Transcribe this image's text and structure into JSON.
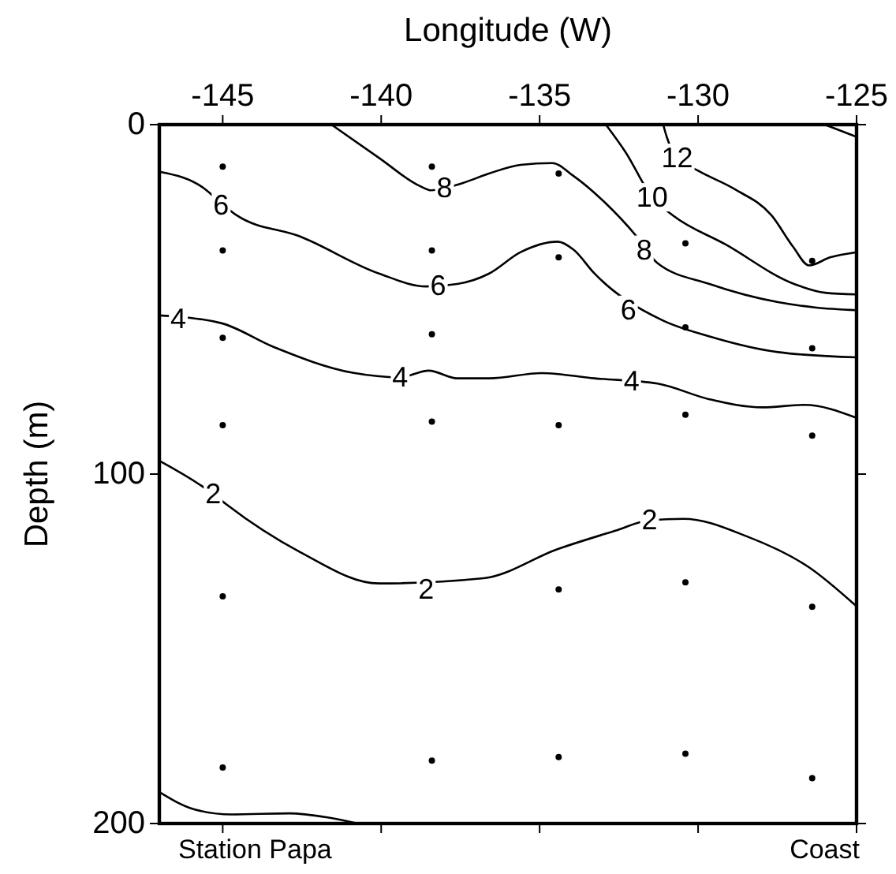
{
  "chart_data": {
    "type": "line",
    "xlabel": "Longitude (W)",
    "ylabel": "Depth (m)",
    "xlim": [
      -147,
      -125
    ],
    "xticks": [
      -145,
      -140,
      -135,
      -130,
      -125
    ],
    "ylim": [
      200,
      0
    ],
    "yticks": [
      0,
      100,
      200
    ],
    "grid": false,
    "line_style": "solid",
    "series": [
      {
        "color": "#000000",
        "x": [
          -141.57,
          -140.07,
          -138.75,
          -138.42,
          -137.42,
          -136.6,
          -135.6,
          -134.6,
          -133.93,
          -132.94,
          -131.94,
          -131.3,
          -129.64,
          -127.48,
          -126.32,
          -125
        ],
        "values": [
          0,
          9.5,
          17.7,
          18.8,
          16.7,
          14,
          11.5,
          11,
          14.7,
          22.3,
          32,
          39.5,
          45.6,
          50.8,
          52.3,
          53.1
        ]
      },
      {
        "color": "#000000",
        "x": [
          -147,
          -145.55,
          -145.05,
          -144.55,
          -142.56,
          -140.07,
          -138.58,
          -137.6,
          -136.59,
          -135.6,
          -134.43,
          -133.93,
          -133.27,
          -132.11,
          -131.12,
          -129.64,
          -127.48,
          -125
        ],
        "values": [
          13.5,
          18.5,
          22.5,
          26,
          32,
          42.6,
          46.3,
          45.6,
          42.6,
          36.5,
          33.5,
          35.8,
          42.6,
          null,
          56,
          60.6,
          65.1,
          66.6
        ]
      },
      {
        "color": "#000000",
        "x": [
          -147,
          -146.4,
          -145.05,
          -143.4,
          -140.9,
          -139.4,
          -138.5,
          -137.6,
          -136.59,
          -134.93,
          -133.27,
          -131.28,
          -129.64,
          -127.98,
          -126.65,
          -125
        ],
        "values": [
          54.6,
          null,
          56.8,
          63.6,
          71,
          72.3,
          70.4,
          72.6,
          72.6,
          71.1,
          72.6,
          74.1,
          78.6,
          80.9,
          80.2,
          83.9
        ]
      },
      {
        "color": "#000000",
        "x": [
          -132.91,
          -132.28,
          -131.45,
          -130.79,
          -129.13,
          -126.97,
          -125.99,
          -125
        ],
        "values": [
          0,
          8,
          20.8,
          26,
          34.3,
          45.6,
          48.1,
          48.6
        ]
      },
      {
        "color": "#000000",
        "x": [
          -131.1,
          -130.99,
          -130.66,
          -130,
          -128.84,
          -127.68,
          -127,
          -126.5,
          -125.84,
          -125
        ],
        "values": [
          0,
          3.5,
          9.5,
          13.2,
          18.5,
          26,
          35,
          40.3,
          38,
          36.5
        ]
      },
      {
        "color": "#000000",
        "x": [
          -126,
          -125
        ],
        "values": [
          0,
          3.5
        ]
      },
      {
        "color": "#000000",
        "x": [
          -147,
          -145.3,
          -144.88,
          -142.56,
          -140.07,
          -138.58,
          -136.76,
          -134.44,
          -132.61,
          -131.53,
          -130.46,
          -128.47,
          -126.48,
          -125.03
        ],
        "values": [
          96.2,
          105.7,
          108.7,
          122.3,
          131.3,
          null,
          129.8,
          121.5,
          116.2,
          113.2,
          112.8,
          117.8,
          126.8,
          137.6
        ]
      },
      {
        "color": "#000000",
        "x": [
          -147,
          -145.88,
          -144.72,
          -142.89,
          -141.73,
          -140.74
        ],
        "values": [
          191,
          196,
          197.4,
          197.1,
          198.2,
          200
        ]
      },
      {
        "type": "scatter",
        "marker": "circle",
        "color": "#000000",
        "x": [
          -145,
          -145,
          -145,
          -145,
          -145,
          -145,
          -138.4,
          -138.4,
          -138.4,
          -138.4,
          -138.4,
          -134.4,
          -134.4,
          -134.4,
          -134.4,
          -134.4,
          -130.4,
          -130.4,
          -130.4,
          -130.4,
          -130.4,
          -126.4,
          -126.4,
          -126.4,
          -126.4,
          -126.4
        ],
        "values": [
          12,
          36,
          61,
          86,
          135,
          184,
          12,
          36,
          60,
          85,
          182,
          14,
          38,
          86,
          133,
          181,
          34,
          58,
          83,
          131,
          180,
          39,
          64,
          89,
          138,
          187
        ]
      }
    ],
    "annotations": [
      {
        "text": "8",
        "x": -138,
        "y": 18
      },
      {
        "text": "8",
        "x": -131.7,
        "y": 35.8
      },
      {
        "text": "6",
        "x": -145.05,
        "y": 23
      },
      {
        "text": "6",
        "x": -138.2,
        "y": 46
      },
      {
        "text": "6",
        "x": -132.2,
        "y": 53
      },
      {
        "text": "4",
        "x": -146.4,
        "y": 55.6
      },
      {
        "text": "4",
        "x": -139.4,
        "y": 72.3
      },
      {
        "text": "4",
        "x": -132.1,
        "y": 73.4
      },
      {
        "text": "10",
        "x": -131.45,
        "y": 20.8
      },
      {
        "text": "12",
        "x": -130.66,
        "y": 9.5
      },
      {
        "text": "2",
        "x": -145.3,
        "y": 105.7
      },
      {
        "text": "2",
        "x": -138.58,
        "y": 132.9
      },
      {
        "text": "2",
        "x": -131.53,
        "y": 113.2
      },
      "Station Papa",
      "Coast"
    ]
  }
}
